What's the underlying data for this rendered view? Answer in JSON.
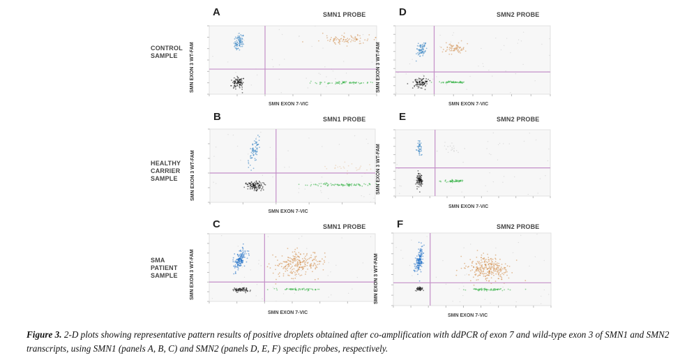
{
  "figure": {
    "caption_label": "Figure 3.",
    "caption_text": " 2-D plots showing representative pattern results of positive droplets obtained after co-amplification with ddPCR of exon 7 and wild-type exon 3 of SMN1 and SMN2 transcripts, using SMN1 (panels A, B, C) and SMN2 (panels D, E, F) specific probes, respectively."
  },
  "row_labels": [
    [
      "CONTROL",
      "SAMPLE"
    ],
    [
      "HEALTHY",
      "CARRIER",
      "SAMPLE"
    ],
    [
      "SMA",
      "PATIENT",
      "SAMPLE"
    ]
  ],
  "chart_data": [
    {
      "type": "scatter",
      "panel": "A",
      "title": "SMN1 PROBE",
      "xlabel": "SMN EXON 7-VIC",
      "ylabel": "SMN EXON 3 WT-FAM",
      "xlim": [
        0,
        6
      ],
      "ylim": [
        0,
        6
      ],
      "threshold_x": 2.0,
      "threshold_y": 2.2,
      "clusters": [
        {
          "name": "FAM+ only",
          "color": "#2f7fc1",
          "cx": 1.05,
          "cy": 4.6,
          "sx": 0.08,
          "sy": 0.35,
          "n": 80,
          "tilt": 0.3
        },
        {
          "name": "double negative",
          "color": "#111111",
          "cx": 1.05,
          "cy": 1.0,
          "sx": 0.12,
          "sy": 0.25,
          "n": 90,
          "tilt": 0
        },
        {
          "name": "double positive",
          "color": "#d4955a",
          "cx": 4.9,
          "cy": 4.8,
          "sx": 0.45,
          "sy": 0.2,
          "n": 90,
          "tilt": 0.4
        },
        {
          "name": "VIC+ only",
          "color": "#3bb54a",
          "cx": 4.8,
          "cy": 1.0,
          "sx": 0.45,
          "sy": 0.06,
          "n": 70,
          "tilt": 0
        }
      ]
    },
    {
      "type": "scatter",
      "panel": "D",
      "title": "SMN2 PROBE",
      "xlabel": "SMN EXON 7-VIC",
      "ylabel": "SMN EXON 3 WT-FAM",
      "xlim": [
        0,
        8
      ],
      "ylim": [
        0,
        8
      ],
      "threshold_x": 2.0,
      "threshold_y": 2.6,
      "clusters": [
        {
          "name": "FAM+ only",
          "color": "#2f7fc1",
          "cx": 1.3,
          "cy": 5.2,
          "sx": 0.12,
          "sy": 0.5,
          "n": 70,
          "tilt": 0.3
        },
        {
          "name": "double negative",
          "color": "#111111",
          "cx": 1.35,
          "cy": 1.4,
          "sx": 0.18,
          "sy": 0.3,
          "n": 90,
          "tilt": 0
        },
        {
          "name": "double positive",
          "color": "#d4955a",
          "cx": 3.0,
          "cy": 5.3,
          "sx": 0.3,
          "sy": 0.3,
          "n": 70,
          "tilt": 0.6
        },
        {
          "name": "VIC+ only",
          "color": "#3bb54a",
          "cx": 3.0,
          "cy": 1.4,
          "sx": 0.4,
          "sy": 0.06,
          "n": 60,
          "tilt": 0
        }
      ]
    },
    {
      "type": "scatter",
      "panel": "B",
      "title": "SMN1 PROBE",
      "xlabel": "SMN EXON 7-VIC",
      "ylabel": "SMN EXON 3 WT-FAM",
      "xlim": [
        0,
        5
      ],
      "ylim": [
        0,
        5
      ],
      "threshold_x": 2.0,
      "threshold_y": 2.0,
      "clusters": [
        {
          "name": "FAM+ only",
          "color": "#2f7fc1",
          "cx": 1.35,
          "cy": 3.5,
          "sx": 0.07,
          "sy": 0.45,
          "n": 70,
          "tilt": 0.3
        },
        {
          "name": "double negative",
          "color": "#111111",
          "cx": 1.35,
          "cy": 1.1,
          "sx": 0.14,
          "sy": 0.15,
          "n": 110,
          "tilt": 0
        },
        {
          "name": "double positive",
          "color": "#e8c9a9",
          "cx": 4.1,
          "cy": 2.4,
          "sx": 0.4,
          "sy": 0.2,
          "n": 25,
          "tilt": 0
        },
        {
          "name": "VIC+ only",
          "color": "#3bb54a",
          "cx": 4.0,
          "cy": 1.2,
          "sx": 0.5,
          "sy": 0.05,
          "n": 90,
          "tilt": 0
        }
      ]
    },
    {
      "type": "scatter",
      "panel": "E",
      "title": "SMN2 PROBE",
      "xlabel": "SMN EXON 7-VIC",
      "ylabel": "SMN EXON 3 WT-FAM",
      "xlim": [
        0,
        9
      ],
      "ylim": [
        0,
        8
      ],
      "threshold_x": 2.3,
      "threshold_y": 3.4,
      "clusters": [
        {
          "name": "FAM+ only",
          "color": "#2f7fc1",
          "cx": 1.4,
          "cy": 5.8,
          "sx": 0.06,
          "sy": 0.5,
          "n": 40,
          "tilt": 0
        },
        {
          "name": "double negative",
          "color": "#111111",
          "cx": 1.4,
          "cy": 2.0,
          "sx": 0.08,
          "sy": 0.4,
          "n": 90,
          "tilt": 0
        },
        {
          "name": "double positive",
          "color": "#cccccc",
          "cx": 3.3,
          "cy": 5.8,
          "sx": 0.3,
          "sy": 0.3,
          "n": 15,
          "tilt": 0
        },
        {
          "name": "VIC+ only",
          "color": "#3bb54a",
          "cx": 3.4,
          "cy": 1.8,
          "sx": 0.35,
          "sy": 0.07,
          "n": 55,
          "tilt": 0
        }
      ]
    },
    {
      "type": "scatter",
      "panel": "C",
      "title": "SMN1 PROBE",
      "xlabel": "SMN EXON 7-VIC",
      "ylabel": "SMN EXON 3 WT-FAM",
      "xlim": [
        0,
        6
      ],
      "ylim": [
        0,
        7
      ],
      "threshold_x": 2.0,
      "threshold_y": 2.0,
      "clusters": [
        {
          "name": "FAM+ only",
          "color": "#1f6fc6",
          "cx": 1.1,
          "cy": 4.3,
          "sx": 0.1,
          "sy": 0.55,
          "n": 150,
          "tilt": 0.35
        },
        {
          "name": "double negative",
          "color": "#222222",
          "cx": 1.15,
          "cy": 1.2,
          "sx": 0.13,
          "sy": 0.1,
          "n": 80,
          "tilt": 0
        },
        {
          "name": "double positive",
          "color": "#d18a45",
          "cx": 3.2,
          "cy": 3.8,
          "sx": 0.45,
          "sy": 0.6,
          "n": 230,
          "tilt": 0.2
        },
        {
          "name": "VIC+ only",
          "color": "#3bb54a",
          "cx": 3.3,
          "cy": 1.25,
          "sx": 0.5,
          "sy": 0.06,
          "n": 60,
          "tilt": 0
        }
      ]
    },
    {
      "type": "scatter",
      "panel": "F",
      "title": "SMN2 PROBE",
      "xlabel": "SMN EXON 7-VIC",
      "ylabel": "SMN EXON 3 WT-FAM",
      "xlim": [
        0,
        9
      ],
      "ylim": [
        0,
        7
      ],
      "threshold_x": 2.1,
      "threshold_y": 2.2,
      "clusters": [
        {
          "name": "FAM+ only",
          "color": "#1f6fc6",
          "cx": 1.5,
          "cy": 4.4,
          "sx": 0.1,
          "sy": 0.6,
          "n": 150,
          "tilt": 0.35
        },
        {
          "name": "double negative",
          "color": "#222222",
          "cx": 1.5,
          "cy": 1.6,
          "sx": 0.1,
          "sy": 0.1,
          "n": 50,
          "tilt": 0
        },
        {
          "name": "double positive",
          "color": "#d18a45",
          "cx": 5.4,
          "cy": 3.5,
          "sx": 0.6,
          "sy": 0.55,
          "n": 260,
          "tilt": 0
        },
        {
          "name": "VIC+ only",
          "color": "#3bb54a",
          "cx": 5.4,
          "cy": 1.55,
          "sx": 0.6,
          "sy": 0.06,
          "n": 70,
          "tilt": 0
        }
      ]
    }
  ]
}
